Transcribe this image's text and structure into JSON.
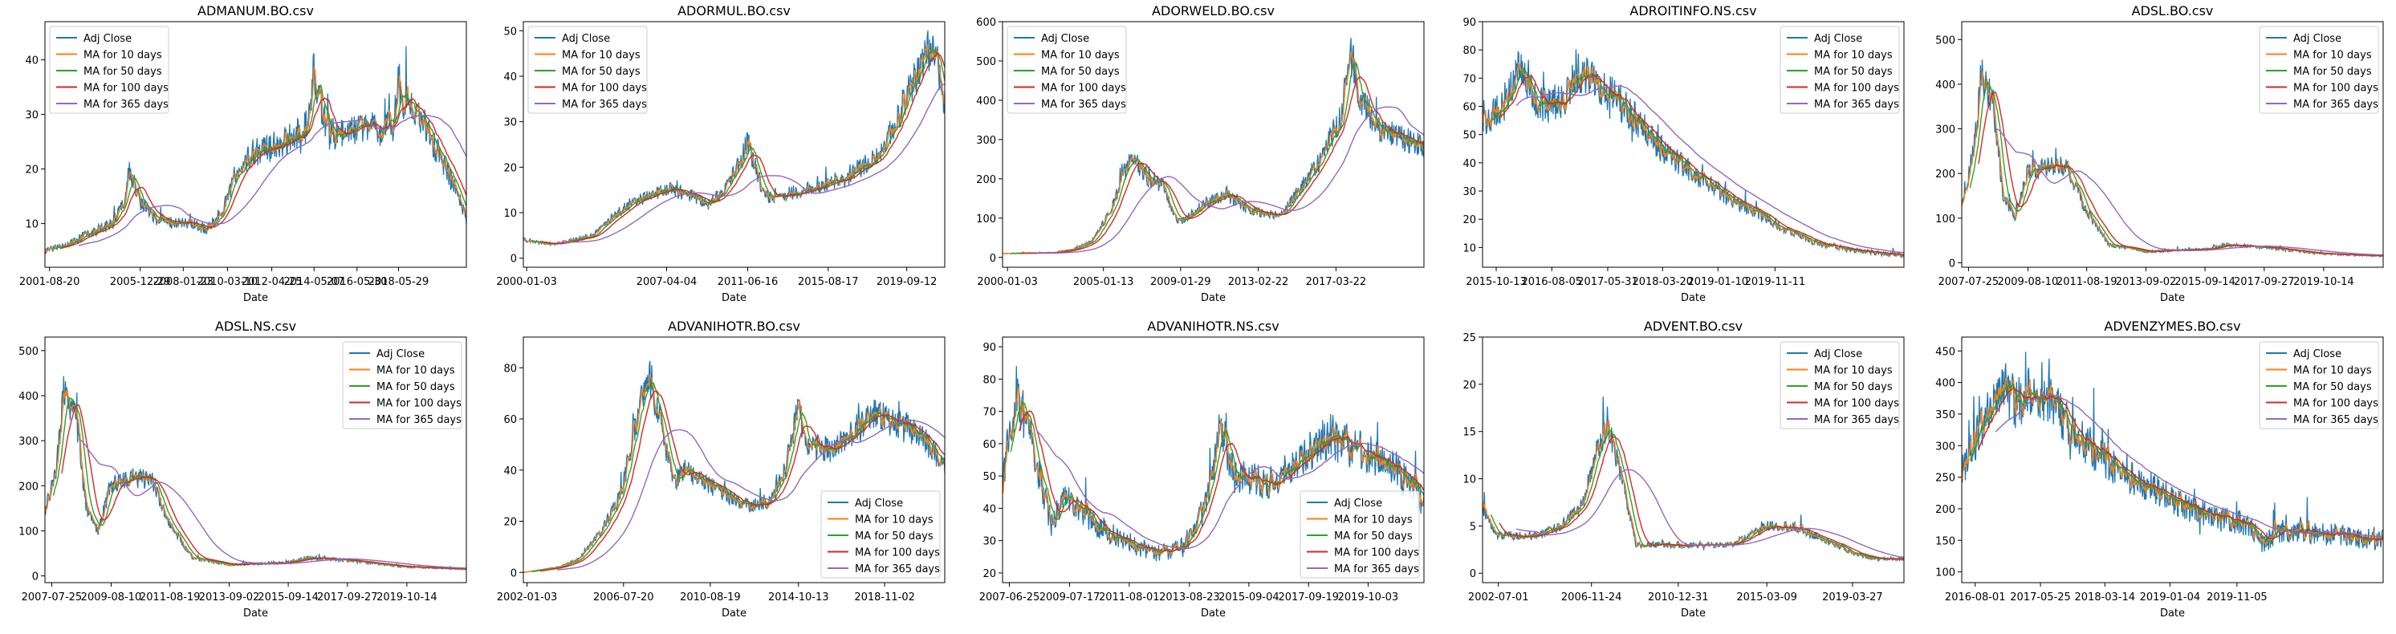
{
  "legend_labels": [
    "Adj Close",
    "MA for 10 days",
    "MA for 50 days",
    "MA for 100 days",
    "MA for 365 days"
  ],
  "series_colors": [
    "#1f77b4",
    "#ff7f0e",
    "#2ca02c",
    "#d62728",
    "#9467bd"
  ],
  "x_axis_label": "Date",
  "chart_data": [
    {
      "type": "line",
      "title": "ADMANUM.BO.csv",
      "xlabel": "Date",
      "ylabel": "",
      "legend_position": "upper left",
      "x_range": [
        "2001-06-01",
        "2021-08-31"
      ],
      "ylim": [
        2,
        47
      ],
      "x_ticks": [
        "2001-08-20",
        "2005-12-29",
        "2008-01-23",
        "2010-03-10",
        "2012-04-25",
        "2014-05-07",
        "2016-05-30",
        "2018-05-29"
      ],
      "y_ticks": [
        10,
        20,
        30,
        40
      ],
      "anchors": [
        [
          "2001-06-01",
          5
        ],
        [
          "2002-06-01",
          6
        ],
        [
          "2003-06-01",
          8
        ],
        [
          "2004-09-01",
          10
        ],
        [
          "2005-04-01",
          14
        ],
        [
          "2005-06-15",
          20
        ],
        [
          "2005-12-29",
          14
        ],
        [
          "2006-10-01",
          11
        ],
        [
          "2007-09-01",
          10
        ],
        [
          "2008-06-01",
          10
        ],
        [
          "2009-03-01",
          9
        ],
        [
          "2009-12-01",
          12
        ],
        [
          "2010-06-01",
          17
        ],
        [
          "2011-01-01",
          21
        ],
        [
          "2011-06-01",
          23
        ],
        [
          "2012-06-01",
          24
        ],
        [
          "2013-06-01",
          26
        ],
        [
          "2014-01-01",
          28
        ],
        [
          "2014-05-07",
          38
        ],
        [
          "2014-10-01",
          30
        ],
        [
          "2015-06-01",
          26
        ],
        [
          "2016-06-01",
          27
        ],
        [
          "2017-06-01",
          27
        ],
        [
          "2018-03-01",
          28
        ],
        [
          "2018-06-01",
          36
        ],
        [
          "2018-09-01",
          32
        ],
        [
          "2019-06-01",
          30
        ],
        [
          "2020-03-01",
          24
        ],
        [
          "2020-09-01",
          20
        ],
        [
          "2021-06-01",
          14
        ],
        [
          "2021-08-31",
          11
        ]
      ]
    },
    {
      "type": "line",
      "title": "ADORMUL.BO.csv",
      "xlabel": "Date",
      "ylabel": "",
      "legend_position": "upper left",
      "x_range": [
        "1999-11-01",
        "2021-08-31"
      ],
      "ylim": [
        -2,
        52
      ],
      "x_ticks": [
        "2000-01-03",
        "2007-04-04",
        "2011-06-16",
        "2015-08-17",
        "2019-09-12"
      ],
      "y_ticks": [
        0,
        10,
        20,
        30,
        40,
        50
      ],
      "anchors": [
        [
          "1999-11-01",
          4
        ],
        [
          "2001-06-01",
          3
        ],
        [
          "2003-06-01",
          5
        ],
        [
          "2004-06-01",
          9
        ],
        [
          "2005-06-01",
          12
        ],
        [
          "2006-06-01",
          14
        ],
        [
          "2007-06-01",
          15
        ],
        [
          "2008-06-01",
          14
        ],
        [
          "2009-06-01",
          12
        ],
        [
          "2010-06-01",
          16
        ],
        [
          "2011-03-01",
          22
        ],
        [
          "2011-06-16",
          26
        ],
        [
          "2012-01-01",
          18
        ],
        [
          "2012-06-01",
          13
        ],
        [
          "2013-06-01",
          14
        ],
        [
          "2014-06-01",
          15
        ],
        [
          "2015-06-01",
          16
        ],
        [
          "2016-06-01",
          17
        ],
        [
          "2017-06-01",
          20
        ],
        [
          "2018-06-01",
          24
        ],
        [
          "2019-03-01",
          30
        ],
        [
          "2019-09-12",
          36
        ],
        [
          "2020-06-01",
          42
        ],
        [
          "2021-02-01",
          48
        ],
        [
          "2021-08-31",
          33
        ]
      ]
    },
    {
      "type": "line",
      "title": "ADORWELD.BO.csv",
      "xlabel": "Date",
      "ylabel": "",
      "legend_position": "upper left",
      "x_range": [
        "1999-10-01",
        "2021-10-31"
      ],
      "ylim": [
        -25,
        600
      ],
      "x_ticks": [
        "2000-01-03",
        "2005-01-13",
        "2009-01-29",
        "2013-02-22",
        "2017-03-22"
      ],
      "y_ticks": [
        0,
        100,
        200,
        300,
        400,
        500,
        600
      ],
      "anchors": [
        [
          "1999-10-01",
          10
        ],
        [
          "2002-06-01",
          12
        ],
        [
          "2003-06-01",
          20
        ],
        [
          "2004-06-01",
          40
        ],
        [
          "2005-06-01",
          120
        ],
        [
          "2006-06-01",
          250
        ],
        [
          "2007-01-01",
          230
        ],
        [
          "2007-06-01",
          200
        ],
        [
          "2008-03-01",
          180
        ],
        [
          "2008-12-01",
          90
        ],
        [
          "2009-06-01",
          100
        ],
        [
          "2010-06-01",
          140
        ],
        [
          "2011-06-01",
          160
        ],
        [
          "2012-06-01",
          130
        ],
        [
          "2013-06-01",
          110
        ],
        [
          "2014-06-01",
          110
        ],
        [
          "2015-06-01",
          180
        ],
        [
          "2016-06-01",
          250
        ],
        [
          "2017-06-01",
          350
        ],
        [
          "2018-01-01",
          520
        ],
        [
          "2018-06-01",
          420
        ],
        [
          "2019-06-01",
          330
        ],
        [
          "2020-06-01",
          310
        ],
        [
          "2021-10-31",
          280
        ]
      ]
    },
    {
      "type": "line",
      "title": "ADROITINFO.NS.csv",
      "xlabel": "Date",
      "ylabel": "",
      "legend_position": "upper right",
      "x_range": [
        "2015-08-01",
        "2021-09-30"
      ],
      "ylim": [
        3,
        90
      ],
      "x_ticks": [
        "2015-10-13",
        "2016-08-05",
        "2017-05-31",
        "2018-03-20",
        "2019-01-10",
        "2019-11-11"
      ],
      "y_ticks": [
        10,
        20,
        30,
        40,
        50,
        60,
        70,
        80,
        90
      ],
      "anchors": [
        [
          "2015-08-01",
          52
        ],
        [
          "2015-12-01",
          62
        ],
        [
          "2016-02-01",
          75
        ],
        [
          "2016-06-01",
          60
        ],
        [
          "2016-10-01",
          62
        ],
        [
          "2017-01-01",
          72
        ],
        [
          "2017-06-01",
          65
        ],
        [
          "2017-10-01",
          58
        ],
        [
          "2018-01-01",
          50
        ],
        [
          "2018-05-01",
          42
        ],
        [
          "2018-10-01",
          35
        ],
        [
          "2019-03-01",
          28
        ],
        [
          "2019-08-01",
          22
        ],
        [
          "2020-01-01",
          17
        ],
        [
          "2020-06-01",
          12
        ],
        [
          "2021-01-01",
          9
        ],
        [
          "2021-09-30",
          7
        ]
      ]
    },
    {
      "type": "line",
      "title": "ADSL.BO.csv",
      "xlabel": "Date",
      "ylabel": "",
      "legend_position": "upper right",
      "x_range": [
        "2007-05-01",
        "2021-10-31"
      ],
      "ylim": [
        -10,
        540
      ],
      "x_ticks": [
        "2007-07-25",
        "2009-08-10",
        "2011-08-19",
        "2013-09-02",
        "2015-09-14",
        "2017-09-27",
        "2019-10-14"
      ],
      "y_ticks": [
        0,
        100,
        200,
        300,
        400,
        500
      ],
      "anchors": [
        [
          "2007-05-01",
          140
        ],
        [
          "2007-10-01",
          250
        ],
        [
          "2008-01-01",
          420
        ],
        [
          "2008-06-01",
          350
        ],
        [
          "2008-10-01",
          150
        ],
        [
          "2009-03-01",
          100
        ],
        [
          "2009-08-01",
          200
        ],
        [
          "2010-06-01",
          220
        ],
        [
          "2011-01-01",
          210
        ],
        [
          "2011-08-01",
          120
        ],
        [
          "2012-06-01",
          40
        ],
        [
          "2013-09-01",
          25
        ],
        [
          "2015-09-01",
          30
        ],
        [
          "2016-06-01",
          40
        ],
        [
          "2017-09-01",
          35
        ],
        [
          "2019-10-01",
          20
        ],
        [
          "2021-10-31",
          15
        ]
      ]
    },
    {
      "type": "line",
      "title": "ADSL.NS.csv",
      "xlabel": "Date",
      "ylabel": "",
      "legend_position": "upper right",
      "x_range": [
        "2007-05-01",
        "2021-10-31"
      ],
      "ylim": [
        -15,
        530
      ],
      "x_ticks": [
        "2007-07-25",
        "2009-08-10",
        "2011-08-19",
        "2013-09-02",
        "2015-09-14",
        "2017-09-27",
        "2019-10-14"
      ],
      "y_ticks": [
        0,
        100,
        200,
        300,
        400,
        500
      ],
      "anchors": [
        [
          "2007-05-01",
          140
        ],
        [
          "2007-10-01",
          250
        ],
        [
          "2008-01-01",
          420
        ],
        [
          "2008-06-01",
          350
        ],
        [
          "2008-10-01",
          150
        ],
        [
          "2009-03-01",
          100
        ],
        [
          "2009-08-01",
          200
        ],
        [
          "2010-06-01",
          220
        ],
        [
          "2011-01-01",
          210
        ],
        [
          "2011-08-01",
          120
        ],
        [
          "2012-06-01",
          40
        ],
        [
          "2013-09-01",
          25
        ],
        [
          "2015-09-01",
          30
        ],
        [
          "2016-06-01",
          40
        ],
        [
          "2017-09-01",
          35
        ],
        [
          "2019-10-01",
          20
        ],
        [
          "2021-10-31",
          15
        ]
      ]
    },
    {
      "type": "line",
      "title": "ADVANIHOTR.BO.csv",
      "xlabel": "Date",
      "ylabel": "",
      "legend_position": "lower right",
      "x_range": [
        "2001-11-01",
        "2021-08-31"
      ],
      "ylim": [
        -4,
        92
      ],
      "x_ticks": [
        "2002-01-03",
        "2006-07-20",
        "2010-08-19",
        "2014-10-13",
        "2018-11-02"
      ],
      "y_ticks": [
        0,
        20,
        40,
        60,
        80
      ],
      "anchors": [
        [
          "2001-11-01",
          0
        ],
        [
          "2003-06-01",
          2
        ],
        [
          "2004-06-01",
          5
        ],
        [
          "2005-06-01",
          15
        ],
        [
          "2006-06-01",
          30
        ],
        [
          "2007-03-01",
          60
        ],
        [
          "2007-10-01",
          78
        ],
        [
          "2008-04-01",
          60
        ],
        [
          "2008-12-01",
          35
        ],
        [
          "2009-06-01",
          40
        ],
        [
          "2010-06-01",
          35
        ],
        [
          "2011-06-01",
          30
        ],
        [
          "2012-06-01",
          26
        ],
        [
          "2013-06-01",
          28
        ],
        [
          "2014-03-01",
          40
        ],
        [
          "2014-10-01",
          65
        ],
        [
          "2015-03-01",
          50
        ],
        [
          "2016-06-01",
          48
        ],
        [
          "2017-06-01",
          55
        ],
        [
          "2018-06-01",
          62
        ],
        [
          "2019-06-01",
          58
        ],
        [
          "2020-06-01",
          55
        ],
        [
          "2021-08-31",
          42
        ]
      ]
    },
    {
      "type": "line",
      "title": "ADVANIHOTR.NS.csv",
      "xlabel": "Date",
      "ylabel": "",
      "legend_position": "lower right",
      "x_range": [
        "2007-04-01",
        "2021-08-31"
      ],
      "ylim": [
        17,
        93
      ],
      "x_ticks": [
        "2007-06-25",
        "2009-07-17",
        "2011-08-01",
        "2013-08-23",
        "2015-09-04",
        "2017-09-19",
        "2019-10-03"
      ],
      "y_ticks": [
        20,
        30,
        40,
        50,
        60,
        70,
        80,
        90
      ],
      "anchors": [
        [
          "2007-04-01",
          50
        ],
        [
          "2007-10-01",
          75
        ],
        [
          "2008-04-01",
          60
        ],
        [
          "2008-12-01",
          35
        ],
        [
          "2009-06-01",
          45
        ],
        [
          "2010-06-01",
          35
        ],
        [
          "2011-06-01",
          30
        ],
        [
          "2012-06-01",
          26
        ],
        [
          "2013-06-01",
          28
        ],
        [
          "2014-03-01",
          40
        ],
        [
          "2014-10-01",
          65
        ],
        [
          "2015-03-01",
          50
        ],
        [
          "2016-06-01",
          48
        ],
        [
          "2017-06-01",
          55
        ],
        [
          "2018-06-01",
          62
        ],
        [
          "2019-06-01",
          58
        ],
        [
          "2020-06-01",
          55
        ],
        [
          "2021-08-31",
          42
        ]
      ]
    },
    {
      "type": "line",
      "title": "ADVENT.BO.csv",
      "xlabel": "Date",
      "ylabel": "",
      "legend_position": "upper right",
      "x_range": [
        "2001-10-01",
        "2021-08-31"
      ],
      "ylim": [
        -1,
        25
      ],
      "x_ticks": [
        "2002-07-01",
        "2006-11-24",
        "2010-12-31",
        "2015-03-09",
        "2019-03-27"
      ],
      "y_ticks": [
        0,
        5,
        10,
        15,
        20,
        25
      ],
      "anchors": [
        [
          "2001-10-01",
          7
        ],
        [
          "2002-06-01",
          4
        ],
        [
          "2003-06-01",
          4
        ],
        [
          "2004-06-01",
          4
        ],
        [
          "2005-06-01",
          5
        ],
        [
          "2006-06-01",
          7
        ],
        [
          "2007-03-01",
          13
        ],
        [
          "2007-09-01",
          16
        ],
        [
          "2008-06-01",
          9
        ],
        [
          "2009-01-01",
          3
        ],
        [
          "2010-06-01",
          3
        ],
        [
          "2011-06-01",
          3
        ],
        [
          "2012-06-01",
          3
        ],
        [
          "2013-06-01",
          3
        ],
        [
          "2014-06-01",
          4
        ],
        [
          "2015-03-01",
          5
        ],
        [
          "2016-06-01",
          5
        ],
        [
          "2017-06-01",
          4
        ],
        [
          "2018-06-01",
          3
        ],
        [
          "2019-06-01",
          2
        ],
        [
          "2020-06-01",
          1.5
        ],
        [
          "2021-08-31",
          1.5
        ]
      ]
    },
    {
      "type": "line",
      "title": "ADVENZYMES.BO.csv",
      "xlabel": "Date",
      "ylabel": "",
      "legend_position": "upper right",
      "x_range": [
        "2016-06-01",
        "2021-08-31"
      ],
      "ylim": [
        83,
        472
      ],
      "x_ticks": [
        "2016-08-01",
        "2017-05-25",
        "2018-03-14",
        "2019-01-04",
        "2019-11-05"
      ],
      "y_ticks": [
        100,
        150,
        200,
        250,
        300,
        350,
        400,
        450
      ],
      "anchors": [
        [
          "2016-06-01",
          260
        ],
        [
          "2016-09-01",
          330
        ],
        [
          "2016-12-01",
          400
        ],
        [
          "2017-02-01",
          370
        ],
        [
          "2017-05-01",
          390
        ],
        [
          "2017-08-01",
          360
        ],
        [
          "2017-11-01",
          320
        ],
        [
          "2018-03-01",
          280
        ],
        [
          "2018-07-01",
          250
        ],
        [
          "2018-11-01",
          230
        ],
        [
          "2019-03-01",
          205
        ],
        [
          "2019-08-01",
          185
        ],
        [
          "2020-01-01",
          175
        ],
        [
          "2020-03-01",
          145
        ],
        [
          "2020-06-01",
          165
        ],
        [
          "2020-12-01",
          160
        ],
        [
          "2021-08-31",
          150
        ]
      ]
    }
  ]
}
